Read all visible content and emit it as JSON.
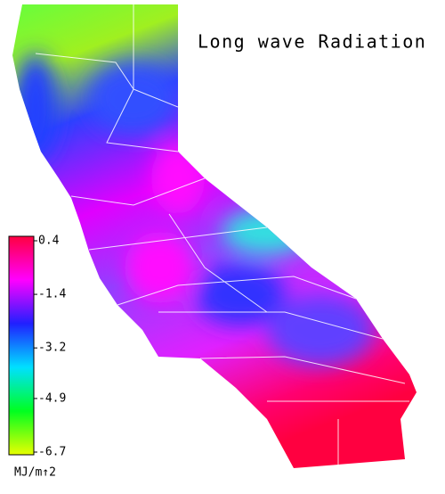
{
  "title": "Long wave Radiation",
  "legend": {
    "ticks": [
      0.4,
      -1.4,
      -3.2,
      -4.9,
      -6.7
    ],
    "colors": [
      "#ff0040",
      "#ff00ff",
      "#2020ff",
      "#00e0ff",
      "#00ff20",
      "#e8ff00"
    ],
    "unit": "MJ/m↑2"
  }
}
